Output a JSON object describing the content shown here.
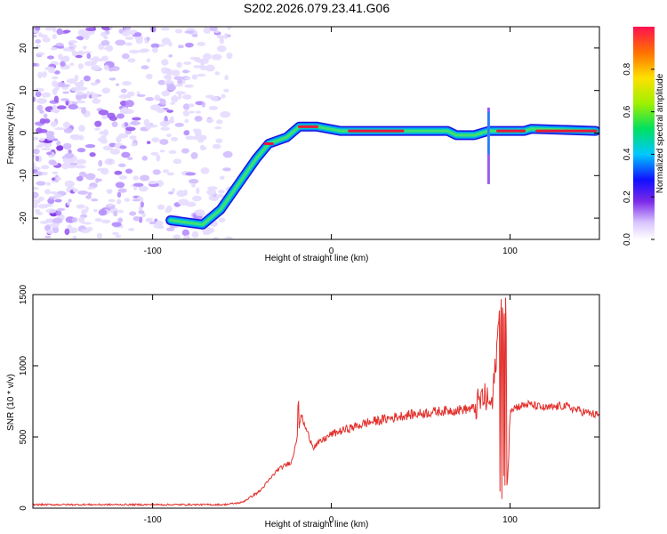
{
  "title": "S202.2026.079.23.41.G06",
  "colors": {
    "line": "#e3302c",
    "spec_low": "#7a28e8",
    "spec_mid": "#00c8c8",
    "spec_high": "#e8183c"
  },
  "chart_data": [
    {
      "type": "heatmap",
      "xlabel": "Height of straight line (km)",
      "ylabel": "Frequency (Hz)",
      "xlim": [
        -167,
        150
      ],
      "ylim": [
        -25,
        25
      ],
      "x_ticks": [
        -100,
        0,
        100
      ],
      "y_ticks": [
        -20,
        -10,
        0,
        10,
        20
      ],
      "ridge_description_points": {
        "x": [
          -90,
          -72,
          -62,
          -52,
          -42,
          -35,
          -25,
          -18,
          -8,
          5,
          40,
          65,
          70,
          80,
          88,
          95,
          108,
          112,
          148
        ],
        "freq": [
          -20.5,
          -21.5,
          -18,
          -12,
          -6,
          -2.5,
          -1,
          1.5,
          1.5,
          0.5,
          0.5,
          0.5,
          -0.5,
          -0.5,
          0.5,
          0.5,
          0.5,
          1,
          0.5
        ]
      },
      "colorbar": {
        "label": "Normalized spectral amplitude",
        "range": [
          0,
          1
        ],
        "ticks": [
          0.0,
          0.2,
          0.4,
          0.6,
          0.8
        ]
      }
    },
    {
      "type": "line",
      "xlabel": "Height of straight line (km)",
      "ylabel": "SNR (10 * v/v)",
      "xlim": [
        -167,
        150
      ],
      "ylim": [
        0,
        1500
      ],
      "x_ticks": [
        -100,
        0,
        100
      ],
      "y_ticks": [
        0,
        500,
        1000,
        1500
      ],
      "series": [
        {
          "name": "SNR",
          "x": [
            -167,
            -120,
            -80,
            -60,
            -50,
            -40,
            -30,
            -22,
            -17,
            -10,
            0,
            20,
            40,
            60,
            80,
            85,
            90,
            95,
            98,
            100,
            110,
            120,
            130,
            140,
            150
          ],
          "y": [
            25,
            25,
            25,
            25,
            40,
            120,
            270,
            330,
            640,
            430,
            520,
            600,
            650,
            680,
            700,
            780,
            720,
            1500,
            60,
            700,
            730,
            700,
            720,
            680,
            650
          ]
        }
      ]
    }
  ]
}
